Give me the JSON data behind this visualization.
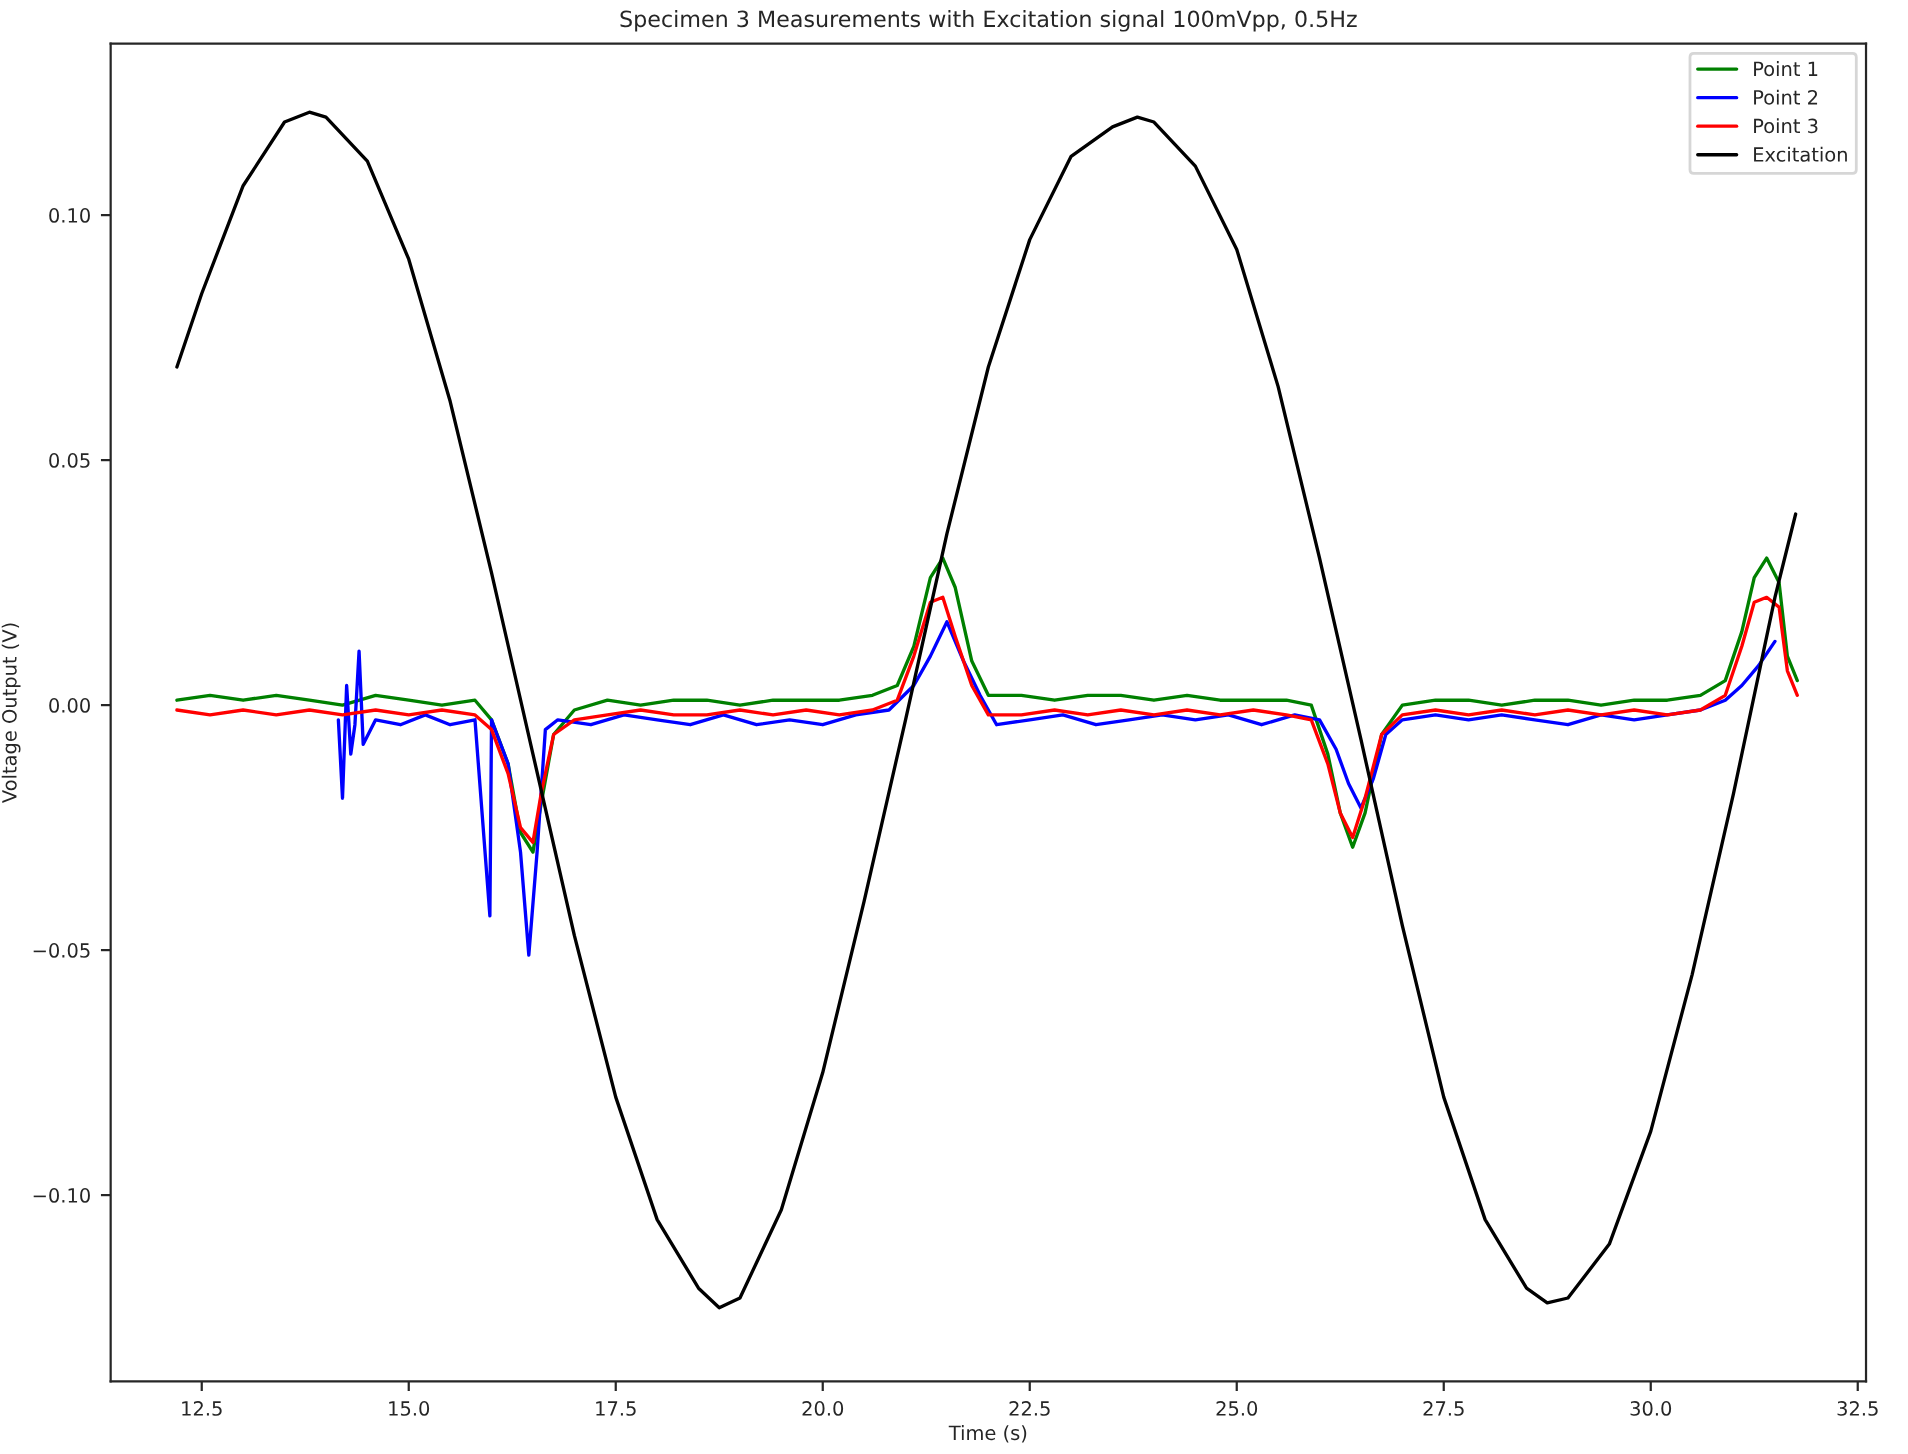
{
  "chart_data": {
    "type": "line",
    "title": "Specimen 3 Measurements with Excitation signal 100mVpp, 0.5Hz",
    "xlabel": "Time (s)",
    "ylabel": "Voltage Output (V)",
    "xlim": [
      11.4,
      32.6
    ],
    "ylim": [
      -0.138,
      0.135
    ],
    "xticks": [
      {
        "value": 12.5,
        "label": "12.5"
      },
      {
        "value": 15.0,
        "label": "15.0"
      },
      {
        "value": 17.5,
        "label": "17.5"
      },
      {
        "value": 20.0,
        "label": "20.0"
      },
      {
        "value": 22.5,
        "label": "22.5"
      },
      {
        "value": 25.0,
        "label": "25.0"
      },
      {
        "value": 27.5,
        "label": "27.5"
      },
      {
        "value": 30.0,
        "label": "30.0"
      },
      {
        "value": 32.5,
        "label": "32.5"
      }
    ],
    "yticks": [
      {
        "value": -0.1,
        "label": "−0.10"
      },
      {
        "value": -0.05,
        "label": "−0.05"
      },
      {
        "value": 0.0,
        "label": "0.00"
      },
      {
        "value": 0.05,
        "label": "0.05"
      },
      {
        "value": 0.1,
        "label": "0.10"
      }
    ],
    "grid": false,
    "legend": "top right",
    "line_style": "solid",
    "marker": "none",
    "series": [
      {
        "name": "Point 1",
        "color": "#008000",
        "x": [
          12.2,
          12.6,
          13.0,
          13.4,
          13.8,
          14.2,
          14.6,
          15.0,
          15.4,
          15.8,
          16.0,
          16.2,
          16.35,
          16.5,
          16.6,
          16.75,
          17.0,
          17.4,
          17.8,
          18.2,
          18.6,
          19.0,
          19.4,
          19.8,
          20.2,
          20.6,
          20.9,
          21.1,
          21.3,
          21.45,
          21.6,
          21.8,
          22.0,
          22.4,
          22.8,
          23.2,
          23.6,
          24.0,
          24.4,
          24.8,
          25.2,
          25.6,
          25.9,
          26.1,
          26.25,
          26.4,
          26.55,
          26.75,
          27.0,
          27.4,
          27.8,
          28.2,
          28.6,
          29.0,
          29.4,
          29.8,
          30.2,
          30.6,
          30.9,
          31.1,
          31.25,
          31.4,
          31.55,
          31.65,
          31.77
        ],
        "values": [
          0.001,
          0.002,
          0.001,
          0.002,
          0.001,
          0.0,
          0.002,
          0.001,
          0.0,
          0.001,
          -0.003,
          -0.012,
          -0.026,
          -0.03,
          -0.02,
          -0.006,
          -0.001,
          0.001,
          0.0,
          0.001,
          0.001,
          0.0,
          0.001,
          0.001,
          0.001,
          0.002,
          0.004,
          0.012,
          0.026,
          0.03,
          0.024,
          0.009,
          0.002,
          0.002,
          0.001,
          0.002,
          0.002,
          0.001,
          0.002,
          0.001,
          0.001,
          0.001,
          0.0,
          -0.01,
          -0.022,
          -0.029,
          -0.022,
          -0.006,
          0.0,
          0.001,
          0.001,
          0.0,
          0.001,
          0.001,
          0.0,
          0.001,
          0.001,
          0.002,
          0.005,
          0.015,
          0.026,
          0.03,
          0.025,
          0.01,
          0.005
        ]
      },
      {
        "name": "Point 2",
        "color": "#0000ff",
        "x": [
          14.15,
          14.2,
          14.25,
          14.3,
          14.35,
          14.4,
          14.45,
          14.6,
          14.9,
          15.2,
          15.5,
          15.8,
          15.98,
          16.0,
          16.02,
          16.2,
          16.35,
          16.45,
          16.55,
          16.65,
          16.8,
          17.2,
          17.6,
          18.0,
          18.4,
          18.8,
          19.2,
          19.6,
          20.0,
          20.4,
          20.8,
          21.1,
          21.3,
          21.5,
          21.7,
          21.9,
          22.1,
          22.5,
          22.9,
          23.3,
          23.7,
          24.1,
          24.5,
          24.9,
          25.3,
          25.7,
          26.0,
          26.2,
          26.35,
          26.5,
          26.65,
          26.8,
          27.0,
          27.4,
          27.8,
          28.2,
          28.6,
          29.0,
          29.4,
          29.8,
          30.2,
          30.6,
          30.9,
          31.1,
          31.3,
          31.5
        ],
        "values": [
          -0.003,
          -0.019,
          0.004,
          -0.01,
          -0.004,
          0.011,
          -0.008,
          -0.003,
          -0.004,
          -0.002,
          -0.004,
          -0.003,
          -0.043,
          -0.003,
          -0.004,
          -0.012,
          -0.03,
          -0.051,
          -0.03,
          -0.005,
          -0.003,
          -0.004,
          -0.002,
          -0.003,
          -0.004,
          -0.002,
          -0.004,
          -0.003,
          -0.004,
          -0.002,
          -0.001,
          0.004,
          0.01,
          0.017,
          0.009,
          0.002,
          -0.004,
          -0.003,
          -0.002,
          -0.004,
          -0.003,
          -0.002,
          -0.003,
          -0.002,
          -0.004,
          -0.002,
          -0.003,
          -0.009,
          -0.016,
          -0.021,
          -0.015,
          -0.006,
          -0.003,
          -0.002,
          -0.003,
          -0.002,
          -0.003,
          -0.004,
          -0.002,
          -0.003,
          -0.002,
          -0.001,
          0.001,
          0.004,
          0.008,
          0.013
        ]
      },
      {
        "name": "Point 3",
        "color": "#ff0000",
        "x": [
          12.2,
          12.6,
          13.0,
          13.4,
          13.8,
          14.2,
          14.6,
          15.0,
          15.4,
          15.8,
          16.0,
          16.2,
          16.35,
          16.5,
          16.6,
          16.75,
          17.0,
          17.4,
          17.8,
          18.2,
          18.6,
          19.0,
          19.4,
          19.8,
          20.2,
          20.6,
          20.9,
          21.1,
          21.3,
          21.45,
          21.6,
          21.8,
          22.0,
          22.4,
          22.8,
          23.2,
          23.6,
          24.0,
          24.4,
          24.8,
          25.2,
          25.6,
          25.9,
          26.1,
          26.25,
          26.4,
          26.55,
          26.75,
          27.0,
          27.4,
          27.8,
          28.2,
          28.6,
          29.0,
          29.4,
          29.8,
          30.2,
          30.6,
          30.9,
          31.1,
          31.25,
          31.4,
          31.55,
          31.65,
          31.77
        ],
        "values": [
          -0.001,
          -0.002,
          -0.001,
          -0.002,
          -0.001,
          -0.002,
          -0.001,
          -0.002,
          -0.001,
          -0.002,
          -0.005,
          -0.014,
          -0.025,
          -0.028,
          -0.018,
          -0.006,
          -0.003,
          -0.002,
          -0.001,
          -0.002,
          -0.002,
          -0.001,
          -0.002,
          -0.001,
          -0.002,
          -0.001,
          0.001,
          0.01,
          0.021,
          0.022,
          0.014,
          0.004,
          -0.002,
          -0.002,
          -0.001,
          -0.002,
          -0.001,
          -0.002,
          -0.001,
          -0.002,
          -0.001,
          -0.002,
          -0.003,
          -0.012,
          -0.022,
          -0.027,
          -0.019,
          -0.006,
          -0.002,
          -0.001,
          -0.002,
          -0.001,
          -0.002,
          -0.001,
          -0.002,
          -0.001,
          -0.002,
          -0.001,
          0.002,
          0.012,
          0.021,
          0.022,
          0.02,
          0.007,
          0.002
        ]
      },
      {
        "name": "Excitation",
        "color": "#000000",
        "x": [
          12.2,
          12.5,
          13.0,
          13.5,
          13.8,
          14.0,
          14.5,
          15.0,
          15.5,
          16.0,
          16.5,
          17.0,
          17.5,
          18.0,
          18.5,
          18.75,
          19.0,
          19.5,
          20.0,
          20.5,
          21.0,
          21.5,
          22.0,
          22.5,
          23.0,
          23.5,
          23.8,
          24.0,
          24.5,
          25.0,
          25.5,
          26.0,
          26.5,
          27.0,
          27.5,
          28.0,
          28.5,
          28.75,
          29.0,
          29.5,
          30.0,
          30.5,
          31.0,
          31.5,
          31.75
        ],
        "values": [
          0.069,
          0.084,
          0.106,
          0.119,
          0.121,
          0.12,
          0.111,
          0.091,
          0.062,
          0.027,
          -0.01,
          -0.047,
          -0.08,
          -0.105,
          -0.119,
          -0.123,
          -0.121,
          -0.103,
          -0.075,
          -0.04,
          -0.003,
          0.035,
          0.069,
          0.095,
          0.112,
          0.118,
          0.12,
          0.119,
          0.11,
          0.093,
          0.065,
          0.03,
          -0.007,
          -0.045,
          -0.08,
          -0.105,
          -0.119,
          -0.122,
          -0.121,
          -0.11,
          -0.087,
          -0.055,
          -0.018,
          0.022,
          0.039
        ]
      }
    ]
  }
}
